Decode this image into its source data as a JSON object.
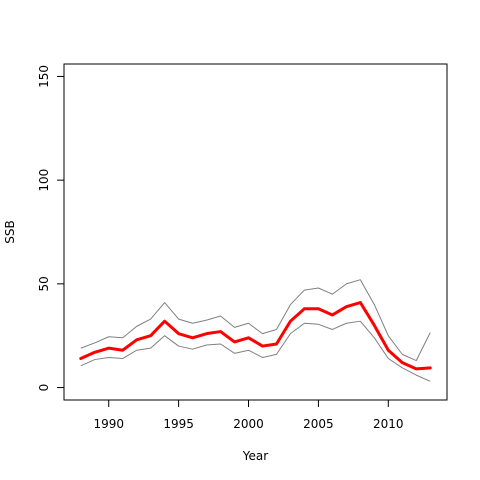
{
  "chart_data": {
    "type": "line",
    "xlabel": "Year",
    "ylabel": "SSB",
    "xlim": [
      1986.8,
      2014.2
    ],
    "ylim": [
      -6,
      156
    ],
    "xticks": [
      1990,
      1995,
      2000,
      2005,
      2010
    ],
    "yticks": [
      0,
      50,
      100,
      150
    ],
    "grid": false,
    "x": [
      1988,
      1989,
      1990,
      1991,
      1992,
      1993,
      1994,
      1995,
      1996,
      1997,
      1998,
      1999,
      2000,
      2001,
      2002,
      2003,
      2004,
      2005,
      2006,
      2007,
      2008,
      2009,
      2010,
      2011,
      2012,
      2013
    ],
    "series": [
      {
        "role": "estimate",
        "color": "#ff0000",
        "values": [
          14,
          17,
          19,
          18,
          23,
          25,
          32,
          26,
          24,
          26,
          27,
          22,
          24,
          20,
          21,
          32,
          38,
          38,
          35,
          39,
          41,
          30,
          18,
          12,
          9,
          9.5
        ]
      },
      {
        "role": "upper",
        "color": "#808080",
        "values": [
          19,
          21.5,
          24.5,
          24,
          29.5,
          33,
          41,
          33,
          31,
          32.5,
          34.5,
          29,
          31,
          26,
          28,
          40,
          47,
          48,
          45,
          50,
          52,
          40,
          25,
          16,
          13,
          26.5
        ]
      },
      {
        "role": "lower",
        "color": "#808080",
        "values": [
          10.5,
          13.5,
          14.5,
          14,
          18,
          19,
          25,
          20,
          18.5,
          20.5,
          21,
          16.5,
          18,
          14.5,
          16,
          26,
          31,
          30.5,
          28,
          31,
          32,
          24,
          14,
          9.5,
          6,
          3
        ]
      }
    ]
  }
}
